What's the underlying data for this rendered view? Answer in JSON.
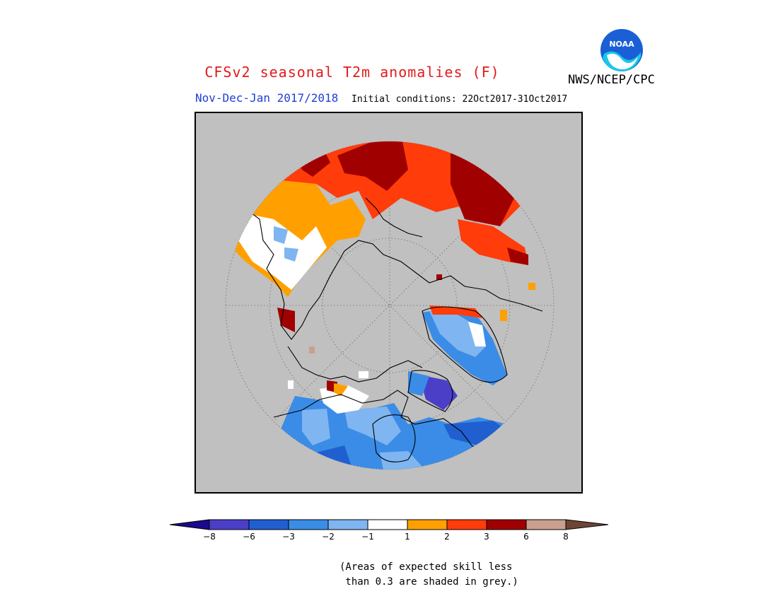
{
  "header": {
    "title": "CFSv2 seasonal T2m anomalies (F)",
    "agency": "NWS/NCEP/CPC",
    "logo_text": "NOAA",
    "period": "Nov-Dec-Jan 2017/2018",
    "initial_conditions": "Initial conditions: 22Oct2017-31Oct2017"
  },
  "legend": {
    "ticks": [
      "−8",
      "−6",
      "−3",
      "−2",
      "−1",
      "1",
      "2",
      "3",
      "6",
      "8"
    ],
    "colors": [
      "#1a0a8c",
      "#4b3fc7",
      "#1f5fd0",
      "#3b8ce6",
      "#7fb5f0",
      "#ffffff",
      "#ffa000",
      "#ff3c0a",
      "#a00000",
      "#c8a090",
      "#6e4436"
    ],
    "note_line1": "(Areas of expected skill less",
    "note_line2": " than 0.3 are shaded in grey.)"
  },
  "map": {
    "projection": "north-polar-stereographic",
    "background_color": "#c0c0c0",
    "graticule": "dotted"
  }
}
